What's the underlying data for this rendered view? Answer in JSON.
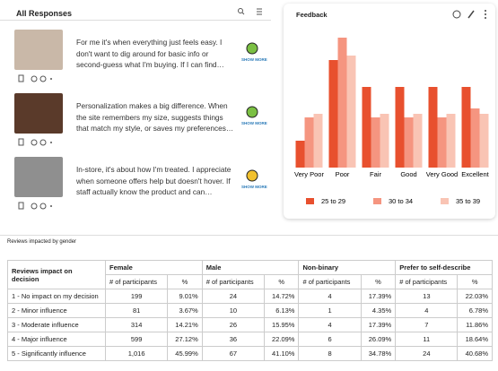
{
  "header": {
    "title": "All Responses"
  },
  "responses": [
    {
      "text": "For me it's when everything just feels easy. I don't want to dig around for basic info or second-guess what I'm buying. If I can find…",
      "action": "SHOW MORE",
      "mood": "positive"
    },
    {
      "text": "Personalization makes a big difference. When the site remembers my size, suggests things that match my style, or saves my preferences…",
      "action": "SHOW MORE",
      "mood": "positive"
    },
    {
      "text": "In-store, it's about how I'm treated. I appreciate when someone offers help but doesn't hover. If staff actually know the product and can…",
      "action": "SHOW MORE",
      "mood": "neutral"
    }
  ],
  "feedback": {
    "title": "Feedback"
  },
  "chart_data": {
    "type": "bar",
    "categories": [
      "Very Poor",
      "Poor",
      "Fair",
      "Good",
      "Very Good",
      "Excellent"
    ],
    "series": [
      {
        "name": "25 to 29",
        "color": "#e8502e",
        "values": [
          30,
          120,
          90,
          90,
          90,
          90
        ]
      },
      {
        "name": "30 to 34",
        "color": "#f59580",
        "values": [
          56,
          145,
          56,
          56,
          56,
          66
        ]
      },
      {
        "name": "35 to 39",
        "color": "#f9c4b4",
        "values": [
          60,
          125,
          60,
          60,
          60,
          60
        ]
      }
    ],
    "legend": "bottom"
  },
  "table": {
    "title": "Reviews impacted by gender",
    "first_header": "Reviews impact on decision",
    "columns": [
      "Female",
      "Male",
      "Non-binary",
      "Prefer to self-describe"
    ],
    "subheaders": [
      "# of participants",
      "%"
    ],
    "rows": [
      [
        "1 - No impact on my decision",
        "199",
        "9.01%",
        "24",
        "14.72%",
        "4",
        "17.39%",
        "13",
        "22.03%"
      ],
      [
        "2 - Minor influence",
        "81",
        "3.67%",
        "10",
        "6.13%",
        "1",
        "4.35%",
        "4",
        "6.78%"
      ],
      [
        "3 - Moderate influence",
        "314",
        "14.21%",
        "26",
        "15.95%",
        "4",
        "17.39%",
        "7",
        "11.86%"
      ],
      [
        "4 - Major influence",
        "599",
        "27.12%",
        "36",
        "22.09%",
        "6",
        "26.09%",
        "11",
        "18.64%"
      ],
      [
        "5 - Significantly influence",
        "1,016",
        "45.99%",
        "67",
        "41.10%",
        "8",
        "34.78%",
        "24",
        "40.68%"
      ]
    ]
  }
}
